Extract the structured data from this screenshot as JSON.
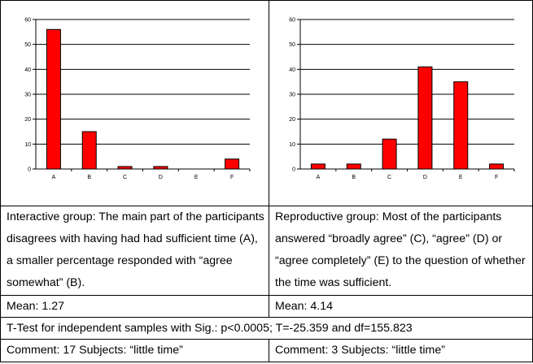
{
  "chart_data": [
    {
      "type": "bar",
      "title": "",
      "categories": [
        "A",
        "B",
        "C",
        "D",
        "E",
        "F"
      ],
      "values": [
        56,
        15,
        1,
        1,
        0,
        4
      ],
      "ylim": [
        0,
        60
      ],
      "yticks": [
        "0",
        "10",
        "20",
        "30",
        "40",
        "50",
        "60"
      ],
      "grid": true,
      "bar_color": "#ff0000"
    },
    {
      "type": "bar",
      "title": "",
      "categories": [
        "A",
        "B",
        "C",
        "D",
        "E",
        "F"
      ],
      "values": [
        2,
        2,
        12,
        41,
        35,
        2
      ],
      "ylim": [
        0,
        60
      ],
      "yticks": [
        "0",
        "10",
        "20",
        "30",
        "40",
        "50",
        "60"
      ],
      "grid": true,
      "bar_color": "#ff0000"
    }
  ],
  "table": {
    "interactive_desc": "Interactive group: The main part of the participants disagrees with having had had sufficient time (A), a smaller percentage responded with “agree somewhat” (B).",
    "reproductive_desc": "Reproductive group: Most of the participants answered “broadly agree” (C), “agree” (D) or “agree completely” (E) to the question of whether the time was sufficient.",
    "mean_left": "Mean: 1.27",
    "mean_right": "Mean: 4.14",
    "ttest": "T-Test for independent samples with Sig.: p<0.0005; T=-25.359 and df=155.823",
    "comment_left": "Comment: 17 Subjects: “little time”",
    "comment_right": "Comment: 3 Subjects: “little time”"
  }
}
